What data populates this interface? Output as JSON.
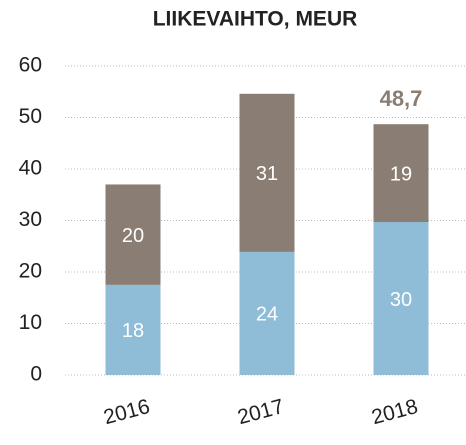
{
  "chart_data": {
    "type": "stacked_bar",
    "title": "LIIKEVAIHTO, MEUR",
    "categories": [
      "2016",
      "2017",
      "2018"
    ],
    "series": [
      {
        "color": "#8fbcd6",
        "values": [
          17.5,
          23.9,
          29.7
        ],
        "value_labels": [
          "18",
          "24",
          "30"
        ]
      },
      {
        "color": "#8a7e74",
        "values": [
          19.5,
          30.7,
          19.0
        ],
        "value_labels": [
          "20",
          "31",
          "19"
        ]
      }
    ],
    "annotations": [
      {
        "text": "48,7",
        "category": 2,
        "value": 48.7
      }
    ],
    "ylim": [
      0,
      60
    ],
    "yticks": [
      0,
      10,
      20,
      30,
      40,
      50,
      60
    ],
    "grid": true
  }
}
